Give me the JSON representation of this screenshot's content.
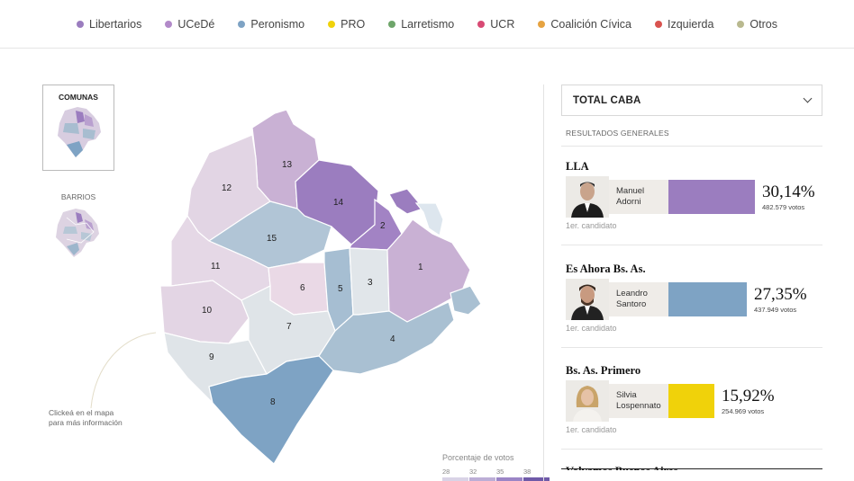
{
  "legend": [
    {
      "label": "Libertarios",
      "color": "#9b7dbf"
    },
    {
      "label": "UCeDé",
      "color": "#b28ac9"
    },
    {
      "label": "Peronismo",
      "color": "#7ea3c4"
    },
    {
      "label": "PRO",
      "color": "#f0d20a"
    },
    {
      "label": "Larretismo",
      "color": "#6ea56a"
    },
    {
      "label": "UCR",
      "color": "#d84a74"
    },
    {
      "label": "Coalición Cívica",
      "color": "#e6a341"
    },
    {
      "label": "Izquierda",
      "color": "#d9534f"
    },
    {
      "label": "Otros",
      "color": "#b9b98f"
    }
  ],
  "thumbs": {
    "comunas": "COMUNAS",
    "barrios": "BARRIOS"
  },
  "hint": {
    "line1": "Clickeá en el mapa",
    "line2": "para más información"
  },
  "map": {
    "labels": [
      "1",
      "2",
      "3",
      "4",
      "5",
      "6",
      "7",
      "8",
      "9",
      "10",
      "11",
      "12",
      "13",
      "14",
      "15"
    ]
  },
  "scale": {
    "title": "Porcentaje de votos",
    "ticks": [
      "28",
      "32",
      "35",
      "38"
    ]
  },
  "panel": {
    "select": "TOTAL CABA",
    "section": "RESULTADOS GENERALES",
    "parties": [
      {
        "party": "LLA",
        "first": "Manuel",
        "last": "Adorni",
        "pct": "30,14%",
        "votes": "482.579 votos",
        "tag": "1er. candidato",
        "color": "#9b7dbf",
        "share": 30.14
      },
      {
        "party": "Es Ahora Bs. As.",
        "first": "Leandro",
        "last": "Santoro",
        "pct": "27,35%",
        "votes": "437.949 votos",
        "tag": "1er. candidato",
        "color": "#7ea3c4",
        "share": 27.35
      },
      {
        "party": "Bs. As. Primero",
        "first": "Silvia",
        "last": "Lospennato",
        "pct": "15,92%",
        "votes": "254.969 votos",
        "tag": "1er. candidato",
        "color": "#f0d20a",
        "share": 15.92
      }
    ],
    "next_party_partial": "Volvamos Buenos Aires"
  }
}
